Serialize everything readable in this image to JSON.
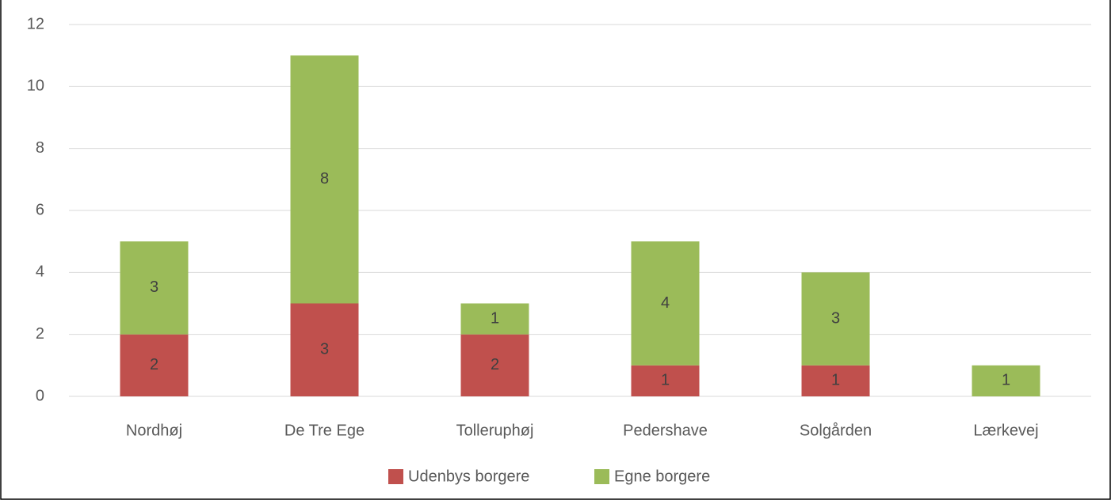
{
  "chart_data": {
    "type": "bar",
    "stacked": true,
    "categories": [
      "Nordhøj",
      "De Tre Ege",
      "Tolleruphøj",
      "Pedershave",
      "Solgården",
      "Lærkevej"
    ],
    "series": [
      {
        "name": "Udenbys borgere",
        "color": "#c0504d",
        "values": [
          2,
          3,
          2,
          1,
          1,
          0
        ]
      },
      {
        "name": "Egne borgere",
        "color": "#9bbb59",
        "values": [
          3,
          8,
          1,
          4,
          3,
          1
        ]
      }
    ],
    "ylim": [
      0,
      12
    ],
    "yticks": [
      0,
      2,
      4,
      6,
      8,
      10,
      12
    ],
    "grid": true,
    "legend": "bottom"
  }
}
